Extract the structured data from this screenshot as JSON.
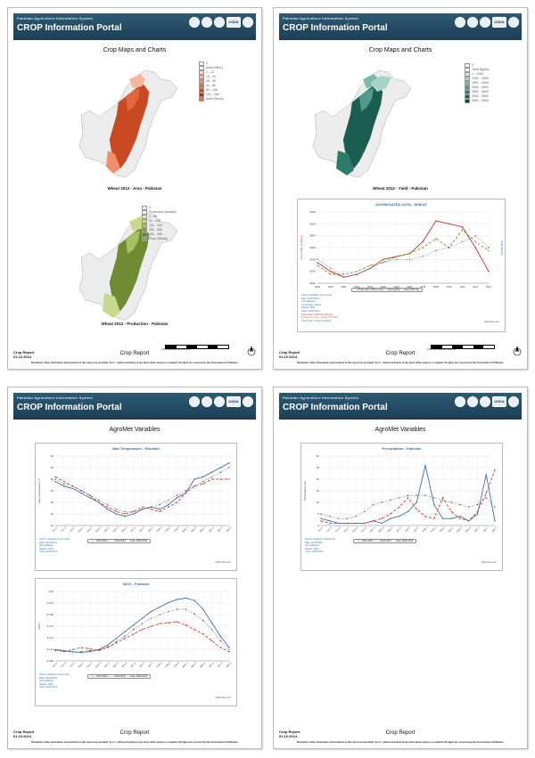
{
  "header": {
    "system_name": "Pakistan Agriculture Information System",
    "portal_title": "CROP Information Portal",
    "usda_label": "USDA"
  },
  "common": {
    "report_label": "Crop Report",
    "report_date": "01.10.2014",
    "footer_title": "Crop Report",
    "disclaimer": "Disclaimer: Data, information and products in this report are provided \"as is\", without warranty of any kind, either express or implied. All rights are reserved by the Government of Pakistan.",
    "scale_labels": "0        200       400       600       800      1000 km",
    "credit": "Highcharts.com"
  },
  "page1": {
    "title": "Crop Maps and Charts",
    "map1": {
      "caption": "Wheat 2012 - Area - Pakistan",
      "legend": [
        "0",
        "Area (Hect.)",
        "1 - 12",
        "13 - 24",
        "25 - 40",
        "41 - 80",
        "81 - 120",
        "121 - 160",
        "Area (Tehsil)"
      ],
      "colors": [
        "#f2f2f2",
        "#ffffff",
        "#fcd9c8",
        "#f7b59a",
        "#ef8e6c",
        "#e0673f",
        "#c94a22",
        "#a83414",
        "#e07040"
      ]
    },
    "map2": {
      "caption": "Wheat 2012 - Production - Pakistan",
      "legend": [
        "0",
        "Production (tonnes)",
        "1 - 50",
        "51 - 100",
        "101 - 150",
        "151 - 250",
        "251 - 400",
        "Prod. (Tehsil)"
      ],
      "colors": [
        "#f2f2f2",
        "#ffffff",
        "#e6ecbf",
        "#c9d88c",
        "#a9bf63",
        "#86a23f",
        "#5f7d28",
        "#8aa84a"
      ]
    }
  },
  "page2": {
    "title": "Crop Maps and Charts",
    "map3": {
      "caption": "Wheat 2012 - Yield - Pakistan",
      "legend": [
        "0",
        "Yield (kg/ha)",
        "1 - 1000",
        "1001 - 1500",
        "1501 - 2000",
        "2001 - 2500",
        "2501 - 3000",
        "3001 - 3500",
        "3501 - 4000"
      ],
      "colors": [
        "#f2f2f2",
        "#ffffff",
        "#cfe8e2",
        "#a7d3c8",
        "#7bb9aa",
        "#4f9c8b",
        "#2e7b6c",
        "#1b5d50",
        "#0e4238"
      ]
    },
    "agg": {
      "title": "AGGREGATED DATA - WHEAT",
      "ylabel_left": "Area ('000 hectares)",
      "ylabel_right": "Yield (kg/ha)",
      "legend": "— Production ('000 tonnes)  -- Yield (kg/ha)  ··· Area ('000 ha)",
      "meta": [
        "Source: Pakistan Crop Portal",
        "Date: 01/10/2014",
        "AOI: Pakistan",
        "Commodity: Wheat",
        "Season: Rabi",
        "Years: 2000-2013",
        "Area mean: 8,557.93 ('000 ha)",
        "Production mean: 21,634.79 ('000 t)",
        "Yield mean: 2,506.24 (kg/ha)"
      ]
    }
  },
  "page3": {
    "title": "AgroMet Variables",
    "chart_tmax": {
      "title": "Max Temperature - Pakistan",
      "ylabel": "Max Temperature °C",
      "legend": "—— 2010-2011   — — 2011-2012   ··· mean 2000-2011",
      "meta": [
        "Source: Pakistan Crop Portal",
        "Date: 01/10/2014",
        "AOI: Pakistan",
        "Season: Rabi",
        "Years: 2000-2013"
      ]
    },
    "chart_ndvi": {
      "title": "NDVI - Pakistan",
      "ylabel": "NDVI",
      "legend": "—— 2010-2011   — — 2011-2012   ··· mean 2000-2011",
      "meta": [
        "Source: Pakistan Crop Portal",
        "Date: 01/10/2014",
        "AOI: Pakistan",
        "Season: Rabi",
        "Years: 2000-2013"
      ]
    }
  },
  "page4": {
    "title": "AgroMet Variables",
    "chart_precip": {
      "title": "Precipitation - Pakistan",
      "ylabel": "Precipitation mm",
      "legend": "—— 2010-2011   — — 2011-2012   ··· mean 2000-2011",
      "meta": [
        "Source: Pakistan Crop Portal",
        "Date: 01/10/2014",
        "AOI: Pakistan",
        "Season: Rabi",
        "Years: 2000-2013"
      ]
    }
  },
  "chart_data": [
    {
      "type": "line",
      "title": "AGGREGATED DATA - WHEAT",
      "x": [
        2000,
        2001,
        2002,
        2003,
        2004,
        2005,
        2006,
        2007,
        2008,
        2009,
        2010,
        2011,
        2012,
        2013
      ],
      "ylim": [
        8000,
        9200
      ],
      "series": [
        {
          "name": "Production ('000 tonnes)",
          "color": "#c0392b",
          "values": [
            8350,
            8200,
            8100,
            8150,
            8250,
            8400,
            8450,
            8500,
            8700,
            9050,
            9000,
            8950,
            8600,
            8200
          ]
        },
        {
          "name": "Yield (kg/ha)",
          "color": "#7a9a3a",
          "values": [
            8300,
            8150,
            8150,
            8200,
            8300,
            8350,
            8450,
            8500,
            8600,
            8750,
            8600,
            8900,
            8700,
            8550
          ]
        },
        {
          "name": "Area ('000 ha)",
          "color": "#3a6fb0",
          "values": [
            8400,
            8250,
            8100,
            8150,
            8250,
            8350,
            8400,
            8400,
            8450,
            8550,
            8600,
            8700,
            8800,
            8600
          ]
        }
      ]
    },
    {
      "type": "line",
      "title": "Max Temperature - Pakistan",
      "x": [
        "Oct-1",
        "Oct-2",
        "Oct-3",
        "Nov-1",
        "Nov-2",
        "Nov-3",
        "Dec-1",
        "Dec-2",
        "Dec-3",
        "Jan-1",
        "Jan-2",
        "Jan-3",
        "Feb-1",
        "Feb-2",
        "Feb-3",
        "Mar-1",
        "Mar-2",
        "Mar-3",
        "Apr-1",
        "Apr-2",
        "Apr-3"
      ],
      "ylim": [
        10,
        40
      ],
      "series": [
        {
          "name": "2010-2011",
          "color": "#3a6fb0",
          "values": [
            29,
            27,
            26,
            24,
            22,
            20,
            17,
            15,
            14,
            15,
            17,
            18,
            17,
            19,
            22,
            24,
            30,
            31,
            33,
            35,
            37
          ]
        },
        {
          "name": "2011-2012",
          "color": "#d0412b",
          "values": [
            31,
            29,
            27,
            25,
            23,
            20,
            18,
            16,
            15,
            16,
            18,
            17,
            16,
            18,
            20,
            24,
            27,
            28,
            30,
            30,
            30
          ]
        },
        {
          "name": "mean 2000-2011",
          "color": "#555555",
          "values": [
            30,
            28,
            27,
            25,
            23,
            21,
            19,
            17,
            16,
            16,
            17,
            18,
            19,
            21,
            23,
            25,
            27,
            29,
            31,
            33,
            35
          ]
        }
      ]
    },
    {
      "type": "line",
      "title": "NDVI - Pakistan",
      "x": [
        "Oct-1",
        "Oct-2",
        "Oct-3",
        "Nov-1",
        "Nov-2",
        "Nov-3",
        "Dec-1",
        "Dec-2",
        "Dec-3",
        "Jan-1",
        "Jan-2",
        "Jan-3",
        "Feb-1",
        "Feb-2",
        "Feb-3",
        "Mar-1",
        "Mar-2",
        "Mar-3",
        "Apr-1",
        "Apr-2",
        "Apr-3"
      ],
      "ylim": [
        0.095,
        0.25
      ],
      "series": [
        {
          "name": "2010-2011",
          "color": "#3a6fb0",
          "values": [
            0.12,
            0.118,
            0.115,
            0.114,
            0.116,
            0.12,
            0.13,
            0.145,
            0.16,
            0.175,
            0.19,
            0.205,
            0.215,
            0.225,
            0.232,
            0.235,
            0.23,
            0.21,
            0.18,
            0.15,
            0.125
          ]
        },
        {
          "name": "2011-2012",
          "color": "#d0412b",
          "values": [
            0.12,
            0.116,
            0.12,
            0.125,
            0.122,
            0.118,
            0.125,
            0.135,
            0.145,
            0.155,
            0.165,
            0.172,
            0.178,
            0.18,
            0.182,
            0.175,
            0.165,
            0.155,
            0.14,
            0.125,
            0.115
          ]
        },
        {
          "name": "mean 2000-2011",
          "color": "#555555",
          "values": [
            0.118,
            0.116,
            0.115,
            0.116,
            0.118,
            0.12,
            0.126,
            0.138,
            0.15,
            0.165,
            0.178,
            0.19,
            0.198,
            0.205,
            0.21,
            0.21,
            0.2,
            0.185,
            0.165,
            0.14,
            0.12
          ]
        }
      ]
    },
    {
      "type": "line",
      "title": "Precipitation - Pakistan",
      "x": [
        "Oct-1",
        "Oct-2",
        "Oct-3",
        "Nov-1",
        "Nov-2",
        "Nov-3",
        "Dec-1",
        "Dec-2",
        "Dec-3",
        "Jan-1",
        "Jan-2",
        "Jan-3",
        "Feb-1",
        "Feb-2",
        "Feb-3",
        "Mar-1",
        "Mar-2",
        "Mar-3",
        "Apr-1",
        "Apr-2",
        "Apr-3"
      ],
      "ylim": [
        0,
        30
      ],
      "series": [
        {
          "name": "2010-2011",
          "color": "#3a6fb0",
          "values": [
            3,
            2,
            1,
            1,
            1,
            1,
            2,
            1,
            3,
            4,
            6,
            10,
            26,
            9,
            3,
            3,
            4,
            2,
            5,
            22,
            2
          ]
        },
        {
          "name": "2011-2012",
          "color": "#d0412b",
          "values": [
            2,
            1,
            1,
            1,
            1,
            1,
            2,
            3,
            5,
            8,
            12,
            7,
            4,
            3,
            12,
            6,
            3,
            2,
            6,
            14,
            24
          ]
        },
        {
          "name": "mean 2000-2011",
          "color": "#555555",
          "values": [
            5,
            4,
            3,
            3,
            4,
            6,
            9,
            10,
            11,
            12,
            13,
            13,
            13,
            12,
            11,
            10,
            9,
            8,
            9,
            12,
            8
          ]
        }
      ]
    }
  ]
}
